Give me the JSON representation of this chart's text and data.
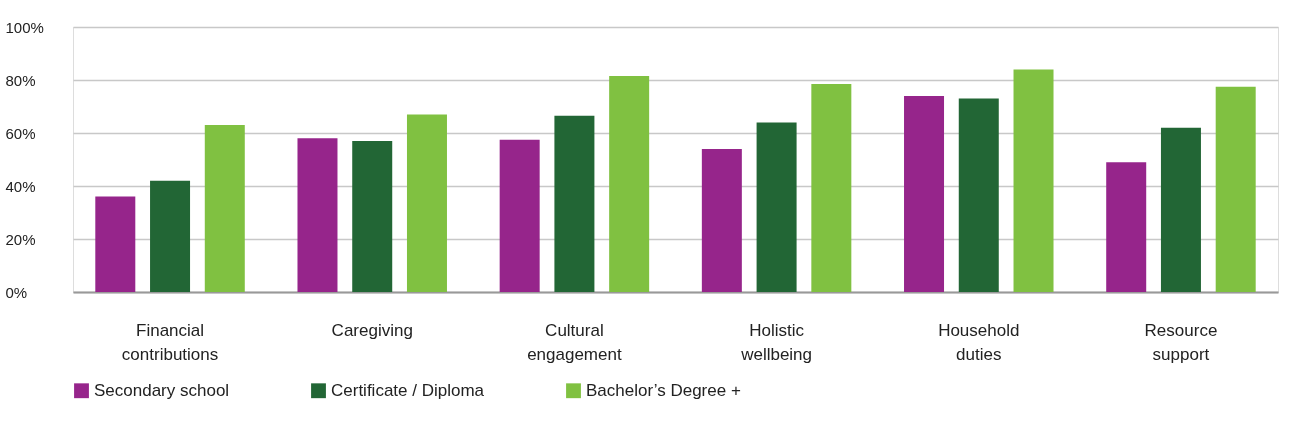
{
  "chart_data": {
    "type": "bar",
    "categories": [
      "Financial contributions",
      "Caregiving",
      "Cultural engagement",
      "Holistic wellbeing",
      "Household duties",
      "Resource support"
    ],
    "series": [
      {
        "name": "Secondary school",
        "color": "#96258b",
        "values": [
          36,
          58,
          57.5,
          54,
          74,
          49
        ]
      },
      {
        "name": "Certificate / Diploma",
        "color": "#226635",
        "values": [
          42,
          57,
          66.5,
          64,
          73,
          62
        ]
      },
      {
        "name": "Bachelor’s Degree +",
        "color": "#80c141",
        "values": [
          63,
          67,
          81.5,
          78.5,
          84,
          77.5
        ]
      }
    ],
    "ylim": [
      0,
      100
    ],
    "yticks": [
      {
        "value": 0,
        "label": "0%"
      },
      {
        "value": 20,
        "label": "20%"
      },
      {
        "value": 40,
        "label": "40%"
      },
      {
        "value": 60,
        "label": "60%"
      },
      {
        "value": 80,
        "label": "80%"
      },
      {
        "value": 100,
        "label": "100%"
      }
    ],
    "grid": "y",
    "legend": "bottom"
  }
}
